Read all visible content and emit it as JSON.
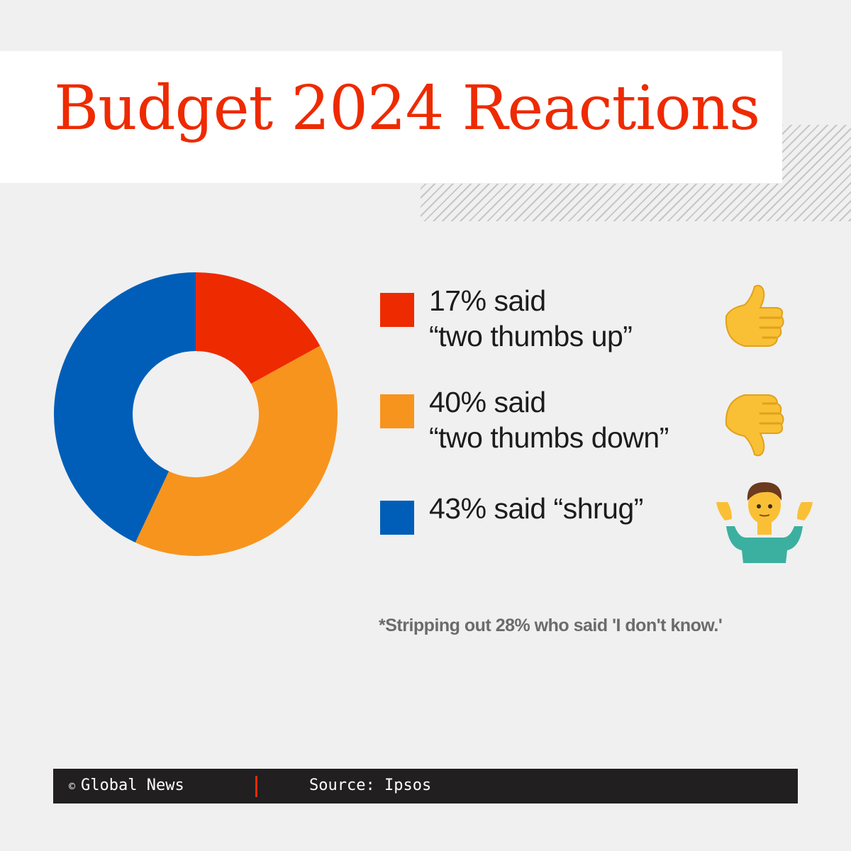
{
  "title": "Budget 2024 Reactions",
  "colors": {
    "accent": "#ee2a00",
    "thumbs_up": "#ee2a00",
    "thumbs_down": "#f7941d",
    "shrug": "#005eb8",
    "background": "#f0f0f0",
    "footer_bg": "#211f20"
  },
  "legend": [
    {
      "line1": "17% said",
      "line2": "“two thumbs up”",
      "icon": "thumbs-up-emoji"
    },
    {
      "line1": "40% said",
      "line2": "“two thumbs down”",
      "icon": "thumbs-down-emoji"
    },
    {
      "line1": "43% said “shrug”",
      "line2": "",
      "icon": "person-shrugging-emoji"
    }
  ],
  "footnote": "*Stripping out 28% who said 'I don't know.'",
  "footer": {
    "copyright_symbol": "©",
    "credit": "Global News",
    "source": "Source: Ipsos"
  },
  "chart_data": {
    "type": "pie",
    "style": "donut",
    "categories": [
      "two thumbs up",
      "two thumbs down",
      "shrug"
    ],
    "values": [
      17,
      40,
      43
    ],
    "unit": "%",
    "colors": [
      "#ee2a00",
      "#f7941d",
      "#005eb8"
    ],
    "title": "Budget 2024 Reactions"
  }
}
